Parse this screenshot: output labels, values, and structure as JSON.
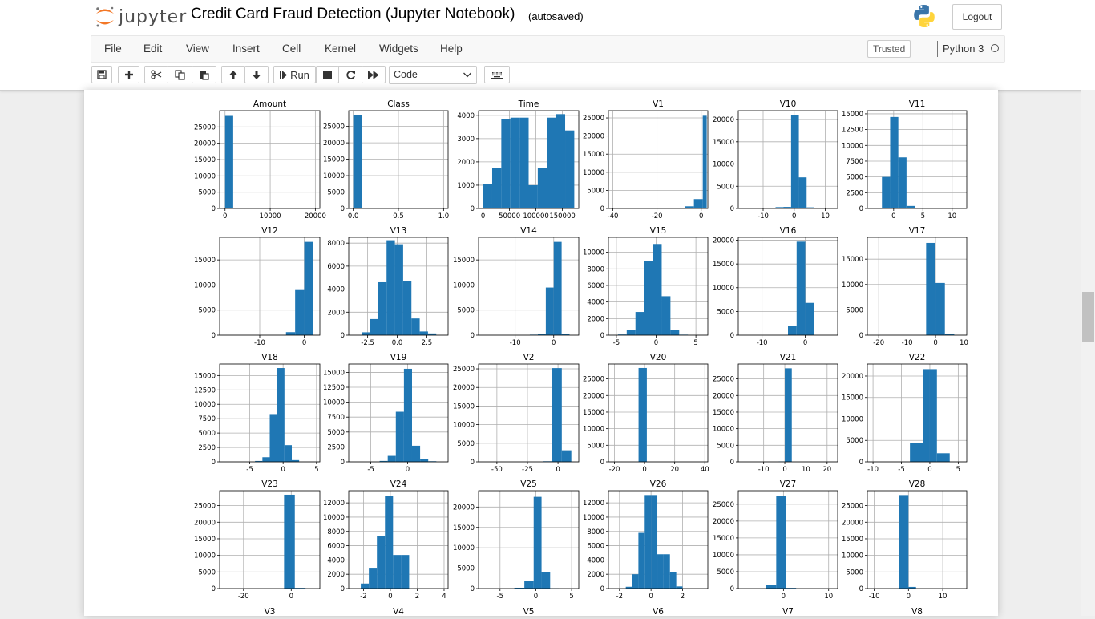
{
  "header": {
    "logo_text": "jupyter",
    "notebook_title": "Credit Card Fraud Detection (Jupyter Notebook)",
    "autosave_status": "(autosaved)",
    "logout_label": "Logout"
  },
  "menubar": {
    "items": [
      "File",
      "Edit",
      "View",
      "Insert",
      "Cell",
      "Kernel",
      "Widgets",
      "Help"
    ],
    "trusted_label": "Trusted",
    "kernel_name": "Python 3"
  },
  "toolbar": {
    "run_label": "Run",
    "cell_type": "Code"
  },
  "colors": {
    "bar": "#1f77b4",
    "jupyter_orange": "#f37726"
  },
  "chart_data": [
    {
      "type": "bar",
      "title": "Amount",
      "xticks": [
        0,
        10000,
        20000
      ],
      "xlim": [
        -1200,
        21000
      ],
      "yticks": [
        0,
        5000,
        10000,
        15000,
        20000,
        25000
      ],
      "ylim": [
        0,
        30000
      ],
      "bins": [
        {
          "x0": 0,
          "x1": 1800,
          "v": 28400
        },
        {
          "x0": 1800,
          "x1": 3600,
          "v": 230
        }
      ]
    },
    {
      "type": "bar",
      "title": "Class",
      "xticks": [
        0.0,
        0.5,
        1.0
      ],
      "xtick_labels": [
        "0.0",
        "0.5",
        "1.0"
      ],
      "xlim": [
        -0.05,
        1.05
      ],
      "yticks": [
        0,
        5000,
        10000,
        15000,
        20000,
        25000
      ],
      "ylim": [
        0,
        29800
      ],
      "bins": [
        {
          "x0": 0,
          "x1": 0.1,
          "v": 28350
        },
        {
          "x0": 0.9,
          "x1": 1.0,
          "v": 50
        }
      ]
    },
    {
      "type": "bar",
      "title": "Time",
      "xticks": [
        0,
        50000,
        100000,
        150000
      ],
      "xlim": [
        -8500,
        181000
      ],
      "yticks": [
        0,
        1000,
        2000,
        3000,
        4000
      ],
      "ylim": [
        0,
        4200
      ],
      "bins": [
        {
          "x0": 0,
          "x1": 17250,
          "v": 1050
        },
        {
          "x0": 17250,
          "x1": 34500,
          "v": 1750
        },
        {
          "x0": 34500,
          "x1": 51750,
          "v": 3850
        },
        {
          "x0": 51750,
          "x1": 69000,
          "v": 3900
        },
        {
          "x0": 69000,
          "x1": 86250,
          "v": 3900
        },
        {
          "x0": 86250,
          "x1": 103500,
          "v": 1000
        },
        {
          "x0": 103500,
          "x1": 120750,
          "v": 1750
        },
        {
          "x0": 120750,
          "x1": 138000,
          "v": 3900
        },
        {
          "x0": 138000,
          "x1": 155250,
          "v": 4050
        },
        {
          "x0": 155250,
          "x1": 172500,
          "v": 3350
        }
      ]
    },
    {
      "type": "bar",
      "title": "V1",
      "xticks": [
        -40,
        -20,
        0
      ],
      "xlim": [
        -42,
        3
      ],
      "yticks": [
        0,
        5000,
        10000,
        15000,
        20000,
        25000
      ],
      "ylim": [
        0,
        27000
      ],
      "bins": [
        {
          "x0": -15.3,
          "x1": -11.3,
          "v": 60
        },
        {
          "x0": -11.3,
          "x1": -7.3,
          "v": 150
        },
        {
          "x0": -7.3,
          "x1": -3.3,
          "v": 600
        },
        {
          "x0": -3.3,
          "x1": 0.7,
          "v": 2600
        },
        {
          "x0": 0.7,
          "x1": 2.5,
          "v": 25600
        }
      ]
    },
    {
      "type": "bar",
      "title": "V10",
      "xticks": [
        -10,
        0,
        10
      ],
      "xlim": [
        -18,
        14
      ],
      "yticks": [
        0,
        5000,
        10000,
        15000,
        20000
      ],
      "ylim": [
        0,
        22000
      ],
      "bins": [
        {
          "x0": -6,
          "x1": -3.5,
          "v": 300
        },
        {
          "x0": -3.5,
          "x1": -1,
          "v": 350
        },
        {
          "x0": -1,
          "x1": 1.5,
          "v": 21000
        },
        {
          "x0": 1.5,
          "x1": 4,
          "v": 7000
        },
        {
          "x0": 4,
          "x1": 6.5,
          "v": 250
        },
        {
          "x0": 6.5,
          "x1": 9,
          "v": 60
        }
      ]
    },
    {
      "type": "bar",
      "title": "V11",
      "xticks": [
        0,
        5,
        10
      ],
      "xlim": [
        -4.5,
        12.5
      ],
      "yticks": [
        0,
        2500,
        5000,
        7500,
        10000,
        12500,
        15000
      ],
      "ylim": [
        0,
        15500
      ],
      "bins": [
        {
          "x0": -2,
          "x1": -0.6,
          "v": 5000
        },
        {
          "x0": -0.6,
          "x1": 0.8,
          "v": 14500
        },
        {
          "x0": 0.8,
          "x1": 2.2,
          "v": 8100
        },
        {
          "x0": 2.2,
          "x1": 3.6,
          "v": 400
        },
        {
          "x0": 3.6,
          "x1": 5,
          "v": 50
        }
      ]
    },
    {
      "type": "bar",
      "title": "V12",
      "xticks": [
        -10,
        0
      ],
      "xlim": [
        -19,
        3.5
      ],
      "yticks": [
        0,
        5000,
        10000,
        15000
      ],
      "ylim": [
        0,
        19500
      ],
      "bins": [
        {
          "x0": -4.1,
          "x1": -2.05,
          "v": 600
        },
        {
          "x0": -2.05,
          "x1": 0,
          "v": 9000
        },
        {
          "x0": 0,
          "x1": 2.05,
          "v": 18600
        }
      ]
    },
    {
      "type": "bar",
      "title": "V13",
      "xticks": [
        -2.5,
        0.0,
        2.5
      ],
      "xtick_labels": [
        "-2.5",
        "0.0",
        "2.5"
      ],
      "xlim": [
        -4.1,
        4.3
      ],
      "yticks": [
        0,
        2000,
        4000,
        6000,
        8000
      ],
      "ylim": [
        0,
        8500
      ],
      "bins": [
        {
          "x0": -3.0,
          "x1": -2.3,
          "v": 250
        },
        {
          "x0": -2.3,
          "x1": -1.6,
          "v": 1400
        },
        {
          "x0": -1.6,
          "x1": -0.9,
          "v": 4600
        },
        {
          "x0": -0.9,
          "x1": -0.2,
          "v": 8250
        },
        {
          "x0": -0.2,
          "x1": 0.5,
          "v": 7900
        },
        {
          "x0": 0.5,
          "x1": 1.2,
          "v": 4700
        },
        {
          "x0": 1.2,
          "x1": 1.9,
          "v": 1450
        },
        {
          "x0": 1.9,
          "x1": 2.6,
          "v": 320
        },
        {
          "x0": 2.6,
          "x1": 3.3,
          "v": 150
        }
      ]
    },
    {
      "type": "bar",
      "title": "V14",
      "xticks": [
        -10,
        0
      ],
      "xlim": [
        -19.5,
        6.5
      ],
      "yticks": [
        0,
        5000,
        10000,
        15000
      ],
      "ylim": [
        0,
        19500
      ],
      "bins": [
        {
          "x0": -6.2,
          "x1": -4.1,
          "v": 100
        },
        {
          "x0": -4.1,
          "x1": -2.05,
          "v": 300
        },
        {
          "x0": -2.05,
          "x1": 0,
          "v": 9500
        },
        {
          "x0": 0,
          "x1": 2.05,
          "v": 18600
        },
        {
          "x0": 2.05,
          "x1": 4.1,
          "v": 200
        }
      ]
    },
    {
      "type": "bar",
      "title": "V15",
      "xticks": [
        -5,
        0,
        5
      ],
      "xlim": [
        -6,
        6.5
      ],
      "yticks": [
        0,
        2000,
        4000,
        6000,
        8000,
        10000
      ],
      "ylim": [
        0,
        11800
      ],
      "bins": [
        {
          "x0": -4.8,
          "x1": -3.7,
          "v": 80
        },
        {
          "x0": -3.7,
          "x1": -2.6,
          "v": 600
        },
        {
          "x0": -2.6,
          "x1": -1.5,
          "v": 2800
        },
        {
          "x0": -1.5,
          "x1": -0.4,
          "v": 8900
        },
        {
          "x0": -0.4,
          "x1": 0.7,
          "v": 11000
        },
        {
          "x0": 0.7,
          "x1": 1.8,
          "v": 4700
        },
        {
          "x0": 1.8,
          "x1": 2.9,
          "v": 600
        },
        {
          "x0": 2.9,
          "x1": 4.0,
          "v": 60
        }
      ]
    },
    {
      "type": "bar",
      "title": "V16",
      "xticks": [
        -10,
        0
      ],
      "xlim": [
        -15.5,
        7.5
      ],
      "yticks": [
        0,
        5000,
        10000,
        15000,
        20000
      ],
      "ylim": [
        0,
        20600
      ],
      "bins": [
        {
          "x0": -4,
          "x1": -2,
          "v": 2000
        },
        {
          "x0": -2,
          "x1": 0,
          "v": 19700
        },
        {
          "x0": 0,
          "x1": 2,
          "v": 6800
        }
      ]
    },
    {
      "type": "bar",
      "title": "V17",
      "xticks": [
        -20,
        -10,
        0,
        10
      ],
      "xlim": [
        -24,
        11
      ],
      "yticks": [
        0,
        5000,
        10000,
        15000
      ],
      "ylim": [
        0,
        19300
      ],
      "bins": [
        {
          "x0": -3.3,
          "x1": 0,
          "v": 18200
        },
        {
          "x0": 0,
          "x1": 3.3,
          "v": 10300
        },
        {
          "x0": 3.3,
          "x1": 6.6,
          "v": 300
        }
      ]
    },
    {
      "type": "bar",
      "title": "V18",
      "xticks": [
        -5,
        0,
        5
      ],
      "xlim": [
        -9.5,
        5.5
      ],
      "yticks": [
        0,
        2500,
        5000,
        7500,
        10000,
        12500,
        15000
      ],
      "ylim": [
        0,
        17000
      ],
      "bins": [
        {
          "x0": -4.2,
          "x1": -3.1,
          "v": 150
        },
        {
          "x0": -3.1,
          "x1": -2.0,
          "v": 800
        },
        {
          "x0": -2.0,
          "x1": -0.9,
          "v": 8300
        },
        {
          "x0": -0.9,
          "x1": 0.2,
          "v": 16300
        },
        {
          "x0": 0.2,
          "x1": 1.3,
          "v": 2900
        },
        {
          "x0": 1.3,
          "x1": 2.4,
          "v": 300
        }
      ]
    },
    {
      "type": "bar",
      "title": "V19",
      "xticks": [
        -5,
        0
      ],
      "xlim": [
        -8,
        5.5
      ],
      "yticks": [
        0,
        2500,
        5000,
        7500,
        10000,
        12500,
        15000
      ],
      "ylim": [
        0,
        16400
      ],
      "bins": [
        {
          "x0": -3.8,
          "x1": -2.7,
          "v": 150
        },
        {
          "x0": -2.7,
          "x1": -1.6,
          "v": 1000
        },
        {
          "x0": -1.6,
          "x1": -0.5,
          "v": 8400
        },
        {
          "x0": -0.5,
          "x1": 0.6,
          "v": 15600
        },
        {
          "x0": 0.6,
          "x1": 1.7,
          "v": 2700
        },
        {
          "x0": 1.7,
          "x1": 2.8,
          "v": 500
        },
        {
          "x0": 2.8,
          "x1": 3.9,
          "v": 100
        }
      ]
    },
    {
      "type": "bar",
      "title": "V2",
      "xticks": [
        -50,
        -25,
        0
      ],
      "xlim": [
        -65,
        17
      ],
      "yticks": [
        0,
        5000,
        10000,
        15000,
        20000,
        25000
      ],
      "ylim": [
        0,
        26300
      ],
      "bins": [
        {
          "x0": -12.5,
          "x1": -4.7,
          "v": 150
        },
        {
          "x0": -4.7,
          "x1": 3.1,
          "v": 25200
        },
        {
          "x0": 3.1,
          "x1": 10.9,
          "v": 3100
        }
      ]
    },
    {
      "type": "bar",
      "title": "V20",
      "xticks": [
        -20,
        0,
        20,
        40
      ],
      "xlim": [
        -24,
        42
      ],
      "yticks": [
        0,
        5000,
        10000,
        15000,
        20000,
        25000
      ],
      "ylim": [
        0,
        29500
      ],
      "bins": [
        {
          "x0": -4,
          "x1": 1.5,
          "v": 28300
        }
      ]
    },
    {
      "type": "bar",
      "title": "V21",
      "xticks": [
        -10,
        0,
        10,
        20
      ],
      "xlim": [
        -22,
        25
      ],
      "yticks": [
        0,
        5000,
        10000,
        15000,
        20000,
        25000
      ],
      "ylim": [
        0,
        29500
      ],
      "bins": [
        {
          "x0": -2.9,
          "x1": 0,
          "v": 120
        },
        {
          "x0": 0,
          "x1": 3.3,
          "v": 28200
        }
      ]
    },
    {
      "type": "bar",
      "title": "V22",
      "xticks": [
        -10,
        -5,
        0,
        5
      ],
      "xlim": [
        -11,
        6.5
      ],
      "yticks": [
        0,
        5000,
        10000,
        15000,
        20000
      ],
      "ylim": [
        0,
        22800
      ],
      "bins": [
        {
          "x0": -3.5,
          "x1": -1.25,
          "v": 4300
        },
        {
          "x0": -1.25,
          "x1": 0,
          "v": 21600
        },
        {
          "x0": 0,
          "x1": 1.25,
          "v": 21600
        },
        {
          "x0": 1.25,
          "x1": 3.5,
          "v": 2000
        }
      ]
    },
    {
      "type": "bar",
      "title": "V23",
      "xticks": [
        -20,
        0
      ],
      "xlim": [
        -30,
        12
      ],
      "yticks": [
        0,
        5000,
        10000,
        15000,
        20000,
        25000
      ],
      "ylim": [
        0,
        29500
      ],
      "bins": [
        {
          "x0": -3,
          "x1": 1.5,
          "v": 28300
        },
        {
          "x0": 1.5,
          "x1": 6,
          "v": 200
        }
      ]
    },
    {
      "type": "bar",
      "title": "V24",
      "xticks": [
        -2,
        0,
        2,
        4
      ],
      "xlim": [
        -3.1,
        4.3
      ],
      "yticks": [
        0,
        2000,
        4000,
        6000,
        8000,
        10000,
        12000
      ],
      "ylim": [
        0,
        13700
      ],
      "bins": [
        {
          "x0": -2.2,
          "x1": -1.6,
          "v": 700
        },
        {
          "x0": -1.6,
          "x1": -1.0,
          "v": 2800
        },
        {
          "x0": -1.0,
          "x1": -0.4,
          "v": 7300
        },
        {
          "x0": -0.4,
          "x1": 0.2,
          "v": 13000
        },
        {
          "x0": 0.2,
          "x1": 0.8,
          "v": 4700
        },
        {
          "x0": 0.8,
          "x1": 1.4,
          "v": 4700
        }
      ]
    },
    {
      "type": "bar",
      "title": "V25",
      "xticks": [
        -5,
        0,
        5
      ],
      "xlim": [
        -8,
        6
      ],
      "yticks": [
        0,
        5000,
        10000,
        15000,
        20000
      ],
      "ylim": [
        0,
        24000
      ],
      "bins": [
        {
          "x0": -3,
          "x1": -1.6,
          "v": 200
        },
        {
          "x0": -1.6,
          "x1": -0.3,
          "v": 1800
        },
        {
          "x0": -0.3,
          "x1": 0.8,
          "v": 22500
        },
        {
          "x0": 0.8,
          "x1": 2,
          "v": 4100
        },
        {
          "x0": 2,
          "x1": 3.2,
          "v": 50
        }
      ]
    },
    {
      "type": "bar",
      "title": "V26",
      "xticks": [
        -2,
        0,
        2
      ],
      "xlim": [
        -2.7,
        3.6
      ],
      "yticks": [
        0,
        2000,
        4000,
        6000,
        8000,
        10000,
        12000
      ],
      "ylim": [
        0,
        13700
      ],
      "bins": [
        {
          "x0": -1.6,
          "x1": -1.2,
          "v": 250
        },
        {
          "x0": -1.2,
          "x1": -0.8,
          "v": 2000
        },
        {
          "x0": -0.8,
          "x1": -0.4,
          "v": 7800
        },
        {
          "x0": -0.4,
          "x1": 0,
          "v": 13100
        },
        {
          "x0": 0,
          "x1": 0.4,
          "v": 13100
        },
        {
          "x0": 0.4,
          "x1": 0.8,
          "v": 4800
        },
        {
          "x0": 0.8,
          "x1": 1.2,
          "v": 4800
        },
        {
          "x0": 1.2,
          "x1": 1.6,
          "v": 2300
        },
        {
          "x0": 1.6,
          "x1": 2.0,
          "v": 300
        }
      ]
    },
    {
      "type": "bar",
      "title": "V27",
      "xticks": [
        0,
        10
      ],
      "xlim": [
        -10,
        12
      ],
      "yticks": [
        0,
        5000,
        10000,
        15000,
        20000,
        25000
      ],
      "ylim": [
        0,
        29000
      ],
      "bins": [
        {
          "x0": -3.8,
          "x1": -1.6,
          "v": 1000
        },
        {
          "x0": -1.6,
          "x1": 0.6,
          "v": 27500
        },
        {
          "x0": 0.6,
          "x1": 2.8,
          "v": 200
        }
      ]
    },
    {
      "type": "bar",
      "title": "V28",
      "xticks": [
        -10,
        0,
        10
      ],
      "xlim": [
        -12,
        17
      ],
      "yticks": [
        0,
        5000,
        10000,
        15000,
        20000,
        25000
      ],
      "ylim": [
        0,
        29500
      ],
      "bins": [
        {
          "x0": -2.8,
          "x1": 0,
          "v": 28200
        },
        {
          "x0": 0,
          "x1": 2.2,
          "v": 500
        }
      ]
    }
  ],
  "next_row_titles": [
    "V3",
    "V4",
    "V5",
    "V6",
    "V7",
    "V8"
  ]
}
